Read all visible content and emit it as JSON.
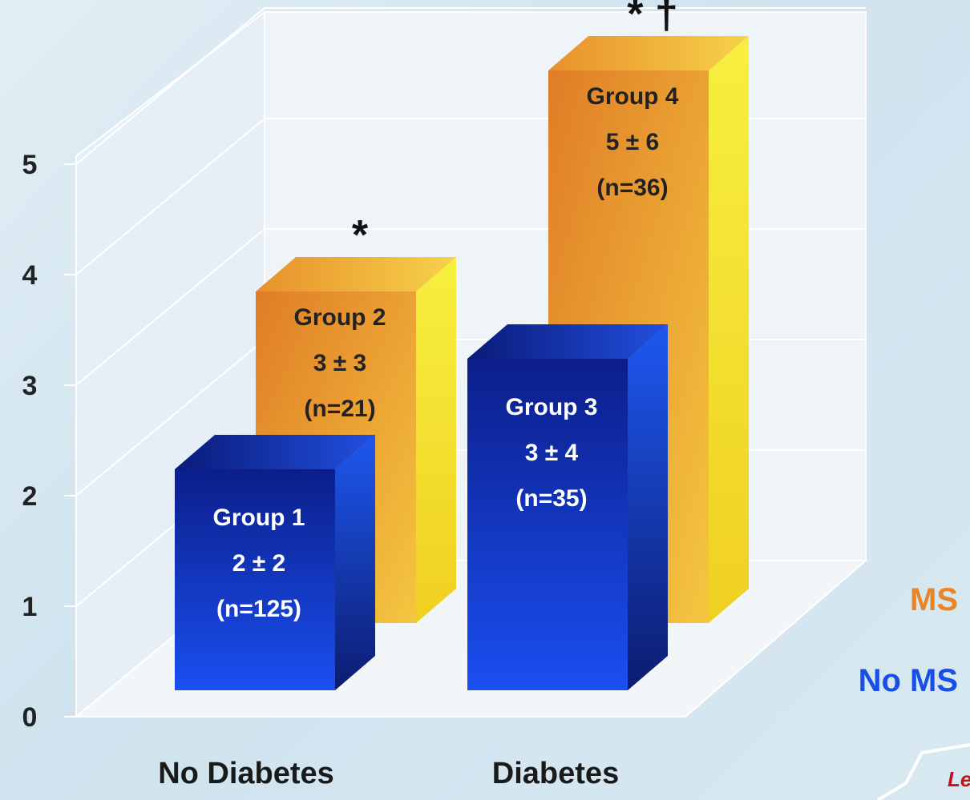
{
  "chart_data": {
    "type": "bar",
    "categories": [
      "No Diabetes",
      "Diabetes"
    ],
    "series": [
      {
        "name": "No MS",
        "color": "#1440d8",
        "values": [
          2,
          3
        ],
        "bars": [
          {
            "group": "Group 1",
            "stat": "2 ± 2",
            "n": "(n=125)",
            "marker": ""
          },
          {
            "group": "Group 3",
            "stat": "3 ± 4",
            "n": "(n=35)",
            "marker": ""
          }
        ]
      },
      {
        "name": "MS",
        "color": "#e89a2a",
        "values": [
          3,
          5
        ],
        "bars": [
          {
            "group": "Group 2",
            "stat": "3 ± 3",
            "n": "(n=21)",
            "marker": "*"
          },
          {
            "group": "Group 4",
            "stat": "5 ± 6",
            "n": "(n=36)",
            "marker": "* †"
          }
        ]
      }
    ],
    "ylim": [
      0,
      5
    ],
    "yticks": [
      "0",
      "1",
      "2",
      "3",
      "4",
      "5"
    ],
    "grid": true,
    "legend_position": "right",
    "legend": [
      {
        "label": "MS",
        "color": "#e8852a"
      },
      {
        "label": "No MS",
        "color": "#1a4fe6"
      }
    ]
  },
  "corner_text": "Le"
}
